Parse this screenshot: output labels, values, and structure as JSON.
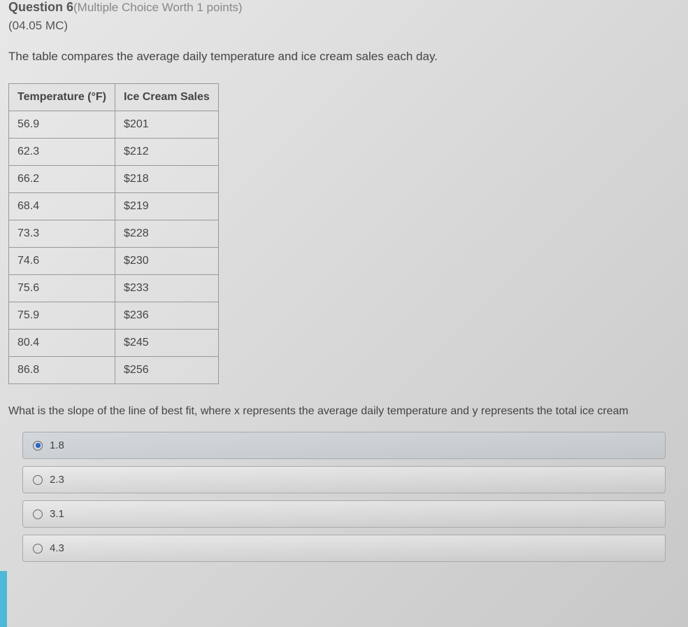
{
  "header": {
    "question_label": "Question 6",
    "worth": "(Multiple Choice Worth 1 points)",
    "section_code": "(04.05 MC)"
  },
  "description": "The table compares the average daily temperature and ice cream sales each day.",
  "table": {
    "columns": [
      "Temperature (°F)",
      "Ice Cream Sales"
    ],
    "rows": [
      [
        "56.9",
        "$201"
      ],
      [
        "62.3",
        "$212"
      ],
      [
        "66.2",
        "$218"
      ],
      [
        "68.4",
        "$219"
      ],
      [
        "73.3",
        "$228"
      ],
      [
        "74.6",
        "$230"
      ],
      [
        "75.6",
        "$233"
      ],
      [
        "75.9",
        "$236"
      ],
      [
        "80.4",
        "$245"
      ],
      [
        "86.8",
        "$256"
      ]
    ],
    "border_color": "#999999",
    "header_bg": "#dcdcdc",
    "text_color": "#444444"
  },
  "prompt": "What is the slope of the line of best fit, where x represents the average daily temperature and y represents the total ice cream",
  "options": [
    {
      "label": "1.8",
      "selected": true
    },
    {
      "label": "2.3",
      "selected": false
    },
    {
      "label": "3.1",
      "selected": false
    },
    {
      "label": "4.3",
      "selected": false
    }
  ],
  "colors": {
    "background_gradient_start": "#e8e8e8",
    "background_gradient_end": "#c8c8c8",
    "radio_checked": "#2266cc",
    "left_edge": "#4db8d8"
  }
}
